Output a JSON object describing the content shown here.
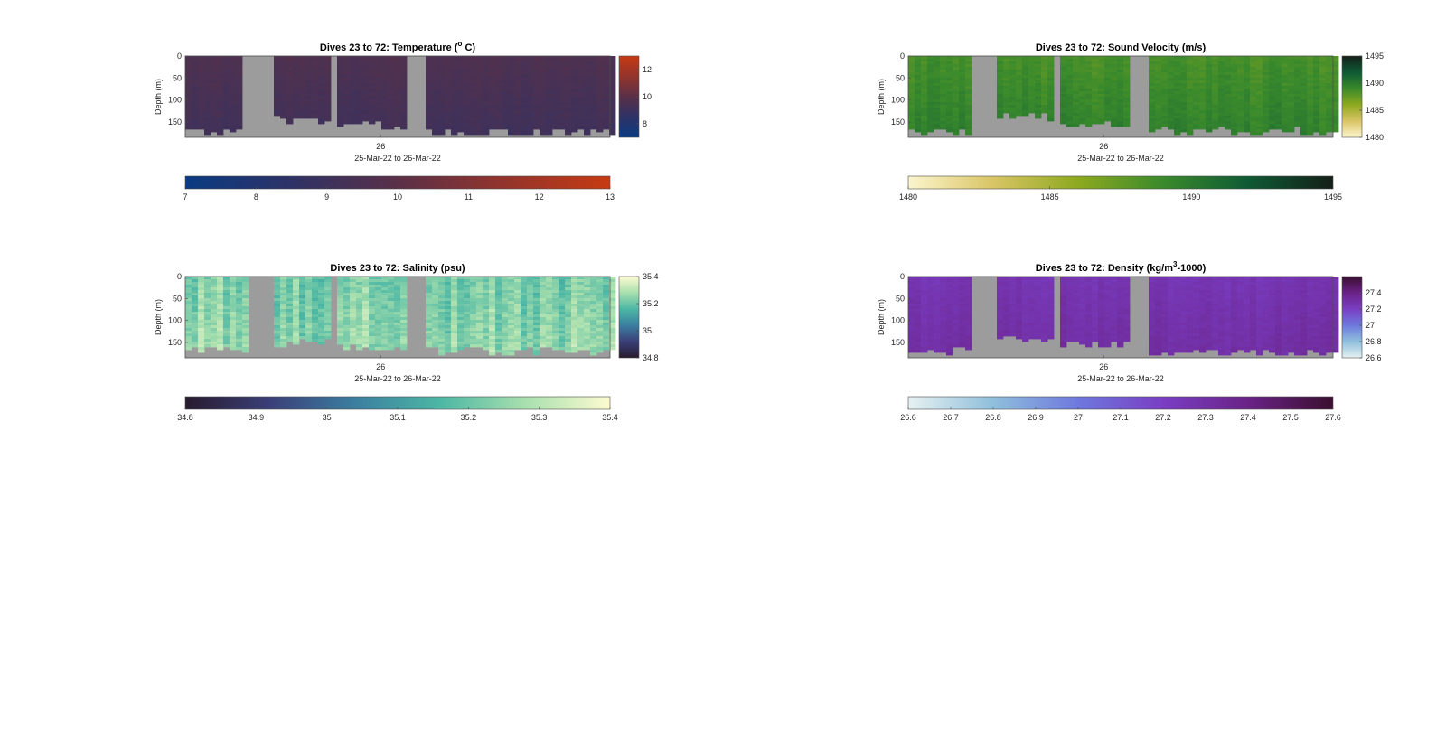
{
  "figure": {
    "background": "#ffffff",
    "nan_color": "#9c9c9c",
    "axis_color": "#4d4d4d"
  },
  "chart_data": [
    {
      "id": "temperature",
      "type": "heatmap",
      "title_pre": "Dives 23 to 72: Temperature (",
      "title_sup": "o",
      "title_post": " C)",
      "title": "Dives 23 to 72: Temperature (o C)",
      "ylabel": "Depth (m)",
      "ylim": [
        0,
        185
      ],
      "yticks": [
        "0",
        "50",
        "100",
        "150"
      ],
      "x_tick_label": "26",
      "xlabel": "25-Mar-22 to 26-Mar-22",
      "colormap": [
        "#0a3b82",
        "#2e3266",
        "#5a3048",
        "#93342c",
        "#c63a12"
      ],
      "color_range": [
        7,
        13
      ],
      "vertical_colorbar_ticks": [
        "8",
        "10",
        "12"
      ],
      "horizontal_colorbar_ticks": [
        "7",
        "8",
        "9",
        "10",
        "11",
        "12",
        "13"
      ],
      "field": {
        "base": 9.6,
        "depth_gradient": -0.5,
        "noise": 0.15
      },
      "columns": [
        {
          "x0": 0.0,
          "x1": 0.135,
          "max_depth": 181
        },
        {
          "x0": 0.2,
          "x1": 0.34,
          "max_depth": 155
        },
        {
          "x0": 0.36,
          "x1": 0.52,
          "max_depth": 168
        },
        {
          "x0": 0.56,
          "x1": 1.0,
          "max_depth": 182
        }
      ]
    },
    {
      "id": "sound_velocity",
      "type": "heatmap",
      "title_pre": "Dives 23 to 72: Sound Velocity (m/s)",
      "title_sup": "",
      "title_post": "",
      "title": "Dives 23 to 72: Sound Velocity (m/s)",
      "ylabel": "Depth (m)",
      "ylim": [
        0,
        185
      ],
      "yticks": [
        "0",
        "50",
        "100",
        "150"
      ],
      "x_tick_label": "26",
      "xlabel": "25-Mar-22 to 26-Mar-22",
      "colormap": [
        "#fcf5cd",
        "#d9c565",
        "#8da91f",
        "#3a8a2c",
        "#0f5a35",
        "#141f17"
      ],
      "color_range": [
        1480,
        1495
      ],
      "vertical_colorbar_ticks": [
        "1480",
        "1485",
        "1490",
        "1495"
      ],
      "horizontal_colorbar_ticks": [
        "1480",
        "1485",
        "1490",
        "1495"
      ],
      "field": {
        "base": 1488.5,
        "depth_gradient": 1.2,
        "noise": 0.6
      },
      "columns": [
        {
          "x0": 0.0,
          "x1": 0.14,
          "max_depth": 178
        },
        {
          "x0": 0.2,
          "x1": 0.34,
          "max_depth": 148
        },
        {
          "x0": 0.36,
          "x1": 0.52,
          "max_depth": 165
        },
        {
          "x0": 0.56,
          "x1": 1.0,
          "max_depth": 180
        }
      ]
    },
    {
      "id": "salinity",
      "type": "heatmap",
      "title_pre": "Dives 23 to 72: Salinity (psu)",
      "title_sup": "",
      "title_post": "",
      "title": "Dives 23 to 72: Salinity (psu)",
      "ylabel": "Depth (m)",
      "ylim": [
        0,
        185
      ],
      "yticks": [
        "0",
        "50",
        "100",
        "150"
      ],
      "x_tick_label": "26",
      "xlabel": "25-Mar-22 to 26-Mar-22",
      "colormap": [
        "#281b2e",
        "#3b3f79",
        "#3b7fa0",
        "#4cb7a4",
        "#a8dfae",
        "#fdfbd0"
      ],
      "color_range": [
        34.8,
        35.4
      ],
      "vertical_colorbar_ticks": [
        "34.8",
        "35",
        "35.2",
        "35.4"
      ],
      "horizontal_colorbar_ticks": [
        "34.8",
        "34.9",
        "35",
        "35.1",
        "35.2",
        "35.3",
        "35.4"
      ],
      "field": {
        "base": 35.22,
        "depth_gradient": 0.04,
        "noise": 0.07
      },
      "columns": [
        {
          "x0": 0.0,
          "x1": 0.14,
          "max_depth": 176
        },
        {
          "x0": 0.2,
          "x1": 0.34,
          "max_depth": 160
        },
        {
          "x0": 0.36,
          "x1": 0.52,
          "max_depth": 170
        },
        {
          "x0": 0.56,
          "x1": 1.0,
          "max_depth": 178
        }
      ]
    },
    {
      "id": "density",
      "type": "heatmap",
      "title_pre": "Dives 23 to 72: Density (kg/m",
      "title_sup": "3",
      "title_post": "-1000)",
      "title": "Dives 23 to 72: Density (kg/m3-1000)",
      "ylabel": "Depth (m)",
      "ylim": [
        0,
        185
      ],
      "yticks": [
        "0",
        "50",
        "100",
        "150"
      ],
      "x_tick_label": "26",
      "xlabel": "25-Mar-22 to 26-Mar-22",
      "colormap": [
        "#e6f1f1",
        "#8fbfdc",
        "#6e78de",
        "#7a3ec4",
        "#6a2286",
        "#3a0f2f"
      ],
      "color_range": [
        26.6,
        27.6
      ],
      "vertical_colorbar_ticks": [
        "26.6",
        "26.8",
        "27",
        "27.2",
        "27.4"
      ],
      "horizontal_colorbar_ticks": [
        "26.6",
        "26.7",
        "26.8",
        "26.9",
        "27",
        "27.1",
        "27.2",
        "27.3",
        "27.4",
        "27.5",
        "27.6"
      ],
      "field": {
        "base": 27.26,
        "depth_gradient": 0.05,
        "noise": 0.03
      },
      "columns": [
        {
          "x0": 0.0,
          "x1": 0.14,
          "max_depth": 178
        },
        {
          "x0": 0.2,
          "x1": 0.34,
          "max_depth": 150
        },
        {
          "x0": 0.36,
          "x1": 0.52,
          "max_depth": 165
        },
        {
          "x0": 0.56,
          "x1": 1.0,
          "max_depth": 182
        }
      ]
    }
  ]
}
